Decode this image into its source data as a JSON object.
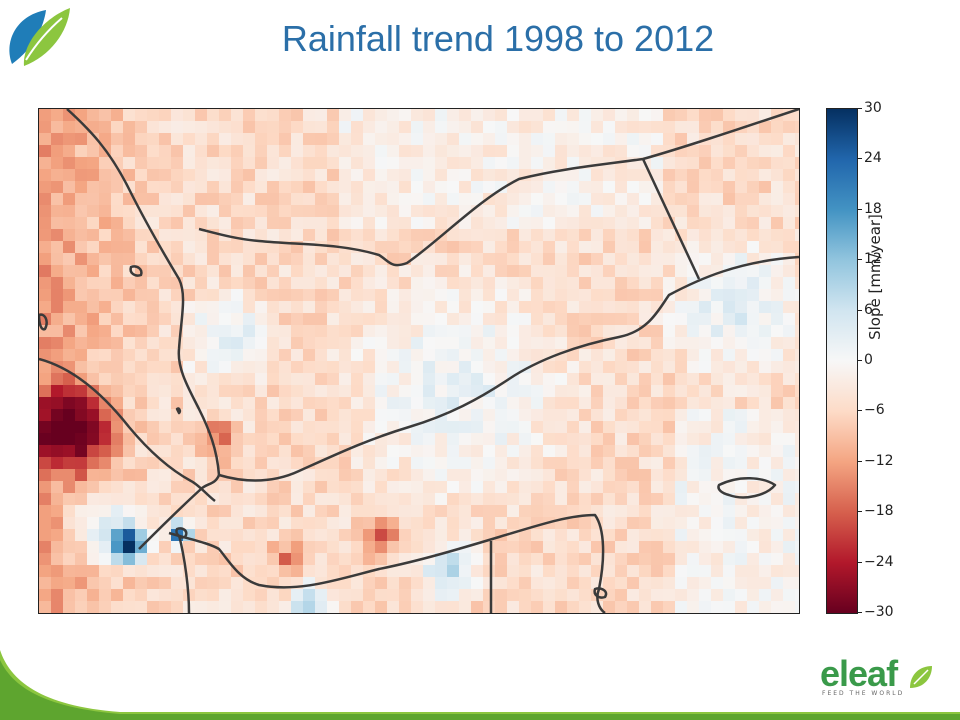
{
  "title": "Rainfall trend 1998 to 2012",
  "colorbar": {
    "label": "Slope [mm/year]",
    "ticks": [
      "30",
      "24",
      "18",
      "12",
      "6",
      "0",
      "−6",
      "−12",
      "−18",
      "−24",
      "−30"
    ],
    "max": 30,
    "min": -30,
    "cmap": "RdBu"
  },
  "brand": {
    "name": "eleaf",
    "tagline": "FEED THE WORLD",
    "color": "#3a9a4a",
    "title_color": "#2b6fa8"
  },
  "icons": {
    "top_logo": "leaf-logo-icon",
    "brand_logo": "eleaf-logo-icon"
  }
}
